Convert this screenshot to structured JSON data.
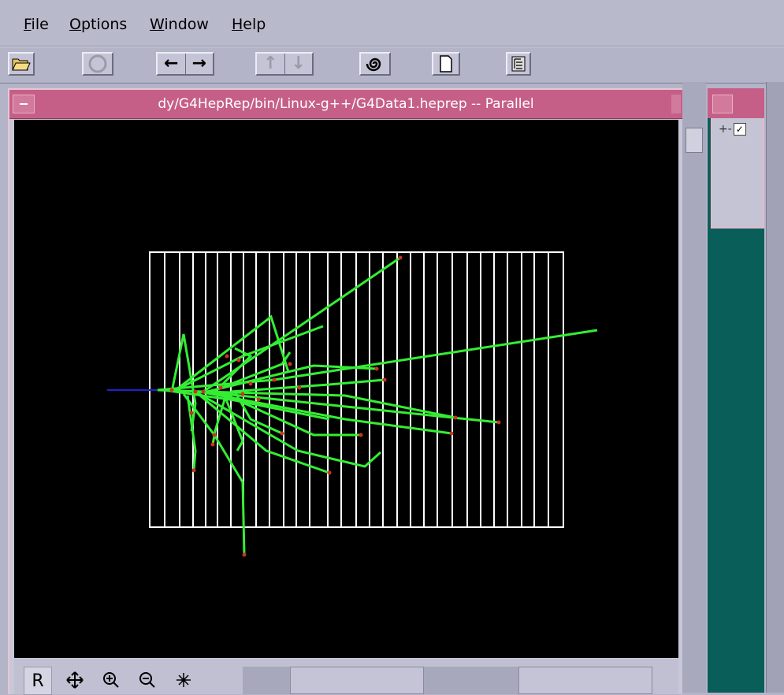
{
  "menubar": {
    "items": [
      "File",
      "Options",
      "Window",
      "Help"
    ]
  },
  "toolbar": {
    "buttons": [
      {
        "name": "open-folder",
        "icon": "folder-open-icon"
      },
      {
        "name": "stop",
        "icon": "stop-circle-icon",
        "disabled": true
      },
      {
        "name": "back-forward",
        "glyphs": [
          "←",
          "→"
        ]
      },
      {
        "name": "up-down",
        "glyphs": [
          "↑",
          "↓"
        ],
        "disabled": true
      },
      {
        "name": "spiral",
        "icon": "spiral-icon"
      },
      {
        "name": "new-document",
        "icon": "document-icon"
      },
      {
        "name": "tree-view",
        "icon": "tree-icon"
      }
    ]
  },
  "window": {
    "title": "dy/G4HepRep/bin/Linux-g++/G4Data1.heprep -- Parallel"
  },
  "viewbar": {
    "reset_label": "R",
    "buttons": [
      "move-icon",
      "zoom-in-icon",
      "zoom-out-icon",
      "center-icon"
    ]
  },
  "side_panel": {
    "tree_node": "+-",
    "checked": true
  },
  "colors": {
    "detector": "#ffffff",
    "tracks": "#33ee33",
    "hits": "#cc3322",
    "incoming_beam": "#2222cc",
    "titlebar": "#c65f87",
    "panel_background": "#0a5e5a"
  }
}
